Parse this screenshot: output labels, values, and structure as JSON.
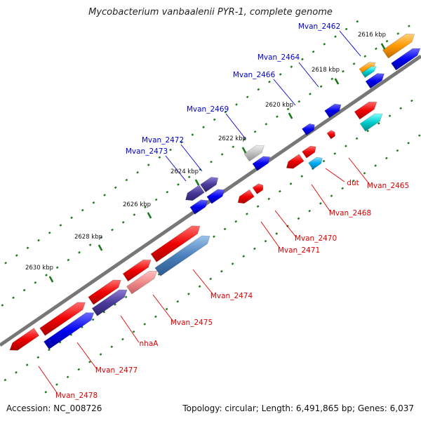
{
  "title": "Mycobacterium vanbaalenii PYR-1, complete genome",
  "footer": {
    "accession": "Accession: NC_008726",
    "summary": "Topology: circular; Length: 6,491,865 bp; Genes: 6,037"
  },
  "ticks": [
    {
      "label": "2616 kbp",
      "pos": 2616
    },
    {
      "label": "2618 kbp",
      "pos": 2618
    },
    {
      "label": "2620 kbp",
      "pos": 2620
    },
    {
      "label": "2622 kbp",
      "pos": 2622
    },
    {
      "label": "2624 kbp",
      "pos": 2624
    },
    {
      "label": "2626 kbp",
      "pos": 2626
    },
    {
      "label": "2628 kbp",
      "pos": 2628
    },
    {
      "label": "2630 kbp",
      "pos": 2630
    }
  ],
  "colors": {
    "upper_label": "#0000cc",
    "lower_label": "#dd0000",
    "axis": "#777777",
    "tick": "#1a7a1a"
  },
  "genes": [
    {
      "label": "Mvan_2462",
      "strand": "upper"
    },
    {
      "label": "Mvan_2464",
      "strand": "upper"
    },
    {
      "label": "Mvan_2466",
      "strand": "upper"
    },
    {
      "label": "Mvan_2469",
      "strand": "upper"
    },
    {
      "label": "Mvan_2472",
      "strand": "upper"
    },
    {
      "label": "Mvan_2473",
      "strand": "upper"
    },
    {
      "label": "Mvan_2465",
      "strand": "lower"
    },
    {
      "label": "dut",
      "strand": "lower"
    },
    {
      "label": "Mvan_2468",
      "strand": "lower"
    },
    {
      "label": "Mvan_2470",
      "strand": "lower"
    },
    {
      "label": "Mvan_2471",
      "strand": "lower"
    },
    {
      "label": "Mvan_2474",
      "strand": "lower"
    },
    {
      "label": "Mvan_2475",
      "strand": "lower"
    },
    {
      "label": "nhaA",
      "strand": "lower"
    },
    {
      "label": "Mvan_2477",
      "strand": "lower"
    },
    {
      "label": "Mvan_2478",
      "strand": "lower"
    }
  ]
}
